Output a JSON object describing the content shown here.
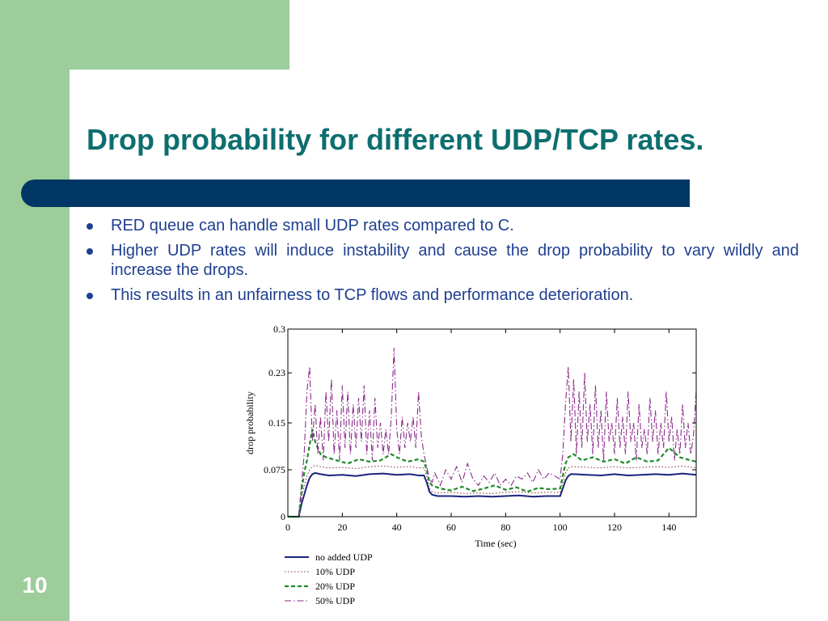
{
  "slide": {
    "title": "Drop probability for different UDP/TCP rates.",
    "bullets": [
      "RED queue can handle small UDP rates compared to C.",
      "Higher UDP rates will induce instability and cause the drop probability to vary wildly and increase the drops.",
      "This results in an unfairness to TCP flows and performance deterioration."
    ],
    "slide_number": "10",
    "colors": {
      "green": "#9ccd9a",
      "title_teal": "#0d6e6e",
      "bar_navy": "#003764",
      "bullet_blue": "#1f3f8f"
    }
  },
  "chart_data": {
    "type": "line",
    "xlabel": "Time (sec)",
    "ylabel": "drop probability",
    "xlim": [
      0,
      150
    ],
    "ylim": [
      0,
      0.3
    ],
    "xticks": [
      "0",
      "20",
      "40",
      "60",
      "80",
      "100",
      "120",
      "140"
    ],
    "yticks": [
      "0",
      "0.075",
      "0.15",
      "0.23",
      "0.3"
    ],
    "grid": false,
    "legend_position": "bottom",
    "series": [
      {
        "name": "no added UDP",
        "color": "#1a237e",
        "style": "solid",
        "x": [
          0,
          4,
          5,
          6,
          7,
          8,
          9,
          10,
          12,
          15,
          20,
          25,
          30,
          35,
          40,
          45,
          48,
          50,
          51,
          52,
          53,
          55,
          60,
          65,
          70,
          75,
          80,
          85,
          90,
          95,
          100,
          101,
          102,
          103,
          104,
          105,
          110,
          115,
          120,
          125,
          130,
          135,
          140,
          145,
          150
        ],
        "y": [
          0,
          0,
          0.02,
          0.035,
          0.05,
          0.062,
          0.068,
          0.07,
          0.068,
          0.066,
          0.067,
          0.065,
          0.068,
          0.069,
          0.067,
          0.068,
          0.066,
          0.066,
          0.055,
          0.04,
          0.035,
          0.033,
          0.033,
          0.032,
          0.033,
          0.032,
          0.033,
          0.034,
          0.032,
          0.033,
          0.033,
          0.045,
          0.058,
          0.065,
          0.068,
          0.068,
          0.067,
          0.066,
          0.068,
          0.066,
          0.067,
          0.068,
          0.067,
          0.069,
          0.067
        ]
      },
      {
        "name": "10% UDP",
        "color": "#8b3a3a",
        "style": "dotted",
        "x": [
          0,
          4,
          5,
          6,
          7,
          8,
          9,
          10,
          12,
          15,
          20,
          25,
          30,
          35,
          40,
          45,
          48,
          50,
          51,
          52,
          53,
          55,
          60,
          65,
          70,
          75,
          80,
          85,
          90,
          95,
          100,
          101,
          102,
          103,
          104,
          105,
          110,
          115,
          120,
          125,
          130,
          135,
          140,
          145,
          150
        ],
        "y": [
          0,
          0,
          0.03,
          0.05,
          0.065,
          0.075,
          0.08,
          0.082,
          0.08,
          0.078,
          0.079,
          0.077,
          0.08,
          0.081,
          0.079,
          0.08,
          0.078,
          0.078,
          0.065,
          0.045,
          0.04,
          0.038,
          0.039,
          0.037,
          0.038,
          0.037,
          0.039,
          0.04,
          0.038,
          0.039,
          0.039,
          0.055,
          0.07,
          0.078,
          0.08,
          0.08,
          0.079,
          0.078,
          0.08,
          0.078,
          0.079,
          0.08,
          0.079,
          0.081,
          0.078
        ]
      },
      {
        "name": "20% UDP",
        "color": "#1e8c2a",
        "style": "dashed",
        "x": [
          0,
          4,
          5,
          6,
          7,
          8,
          9,
          10,
          12,
          14,
          18,
          22,
          26,
          30,
          34,
          38,
          40,
          44,
          48,
          50,
          51,
          52,
          53,
          56,
          60,
          64,
          68,
          72,
          76,
          80,
          84,
          88,
          92,
          96,
          100,
          101,
          102,
          103,
          105,
          108,
          112,
          116,
          120,
          124,
          128,
          132,
          136,
          140,
          144,
          148,
          150
        ],
        "y": [
          0,
          0,
          0.04,
          0.07,
          0.09,
          0.115,
          0.14,
          0.12,
          0.1,
          0.095,
          0.09,
          0.085,
          0.092,
          0.088,
          0.09,
          0.1,
          0.095,
          0.088,
          0.092,
          0.088,
          0.075,
          0.055,
          0.05,
          0.045,
          0.042,
          0.048,
          0.041,
          0.045,
          0.05,
          0.043,
          0.047,
          0.04,
          0.046,
          0.044,
          0.045,
          0.065,
          0.085,
          0.095,
          0.1,
          0.09,
          0.095,
          0.088,
          0.092,
          0.085,
          0.095,
          0.088,
          0.09,
          0.11,
          0.095,
          0.09,
          0.088
        ]
      },
      {
        "name": "50% UDP",
        "color": "#8b2a8b",
        "style": "dashdot",
        "x": [
          0,
          4,
          5,
          6,
          7,
          8,
          9,
          10,
          11,
          12,
          13,
          14,
          15,
          16,
          17,
          18,
          19,
          20,
          21,
          22,
          23,
          24,
          25,
          26,
          27,
          28,
          29,
          30,
          31,
          32,
          33,
          34,
          35,
          36,
          37,
          38,
          39,
          40,
          41,
          42,
          43,
          44,
          45,
          46,
          47,
          48,
          49,
          50,
          51,
          52,
          53,
          54,
          56,
          58,
          60,
          62,
          64,
          66,
          68,
          70,
          72,
          74,
          76,
          78,
          80,
          82,
          84,
          86,
          88,
          90,
          92,
          94,
          96,
          98,
          100,
          101,
          102,
          103,
          104,
          105,
          106,
          107,
          108,
          109,
          110,
          111,
          112,
          113,
          114,
          115,
          116,
          117,
          118,
          119,
          120,
          121,
          122,
          123,
          124,
          125,
          126,
          127,
          128,
          129,
          130,
          131,
          132,
          133,
          134,
          135,
          136,
          137,
          138,
          139,
          140,
          141,
          142,
          143,
          144,
          145,
          146,
          147,
          148,
          149,
          150
        ],
        "y": [
          0,
          0,
          0.05,
          0.1,
          0.2,
          0.24,
          0.12,
          0.18,
          0.1,
          0.16,
          0.09,
          0.2,
          0.12,
          0.22,
          0.1,
          0.17,
          0.09,
          0.21,
          0.11,
          0.2,
          0.1,
          0.18,
          0.11,
          0.19,
          0.12,
          0.21,
          0.1,
          0.17,
          0.09,
          0.19,
          0.11,
          0.15,
          0.1,
          0.14,
          0.1,
          0.16,
          0.27,
          0.14,
          0.1,
          0.16,
          0.11,
          0.15,
          0.12,
          0.16,
          0.11,
          0.2,
          0.13,
          0.1,
          0.08,
          0.06,
          0.055,
          0.07,
          0.05,
          0.075,
          0.06,
          0.08,
          0.055,
          0.085,
          0.06,
          0.05,
          0.065,
          0.055,
          0.07,
          0.05,
          0.06,
          0.05,
          0.065,
          0.06,
          0.07,
          0.055,
          0.075,
          0.06,
          0.07,
          0.065,
          0.06,
          0.1,
          0.18,
          0.24,
          0.12,
          0.22,
          0.1,
          0.2,
          0.11,
          0.23,
          0.12,
          0.18,
          0.1,
          0.21,
          0.11,
          0.17,
          0.09,
          0.2,
          0.12,
          0.15,
          0.1,
          0.19,
          0.11,
          0.16,
          0.1,
          0.2,
          0.12,
          0.15,
          0.09,
          0.18,
          0.11,
          0.14,
          0.1,
          0.19,
          0.12,
          0.17,
          0.1,
          0.15,
          0.11,
          0.2,
          0.12,
          0.16,
          0.09,
          0.14,
          0.1,
          0.18,
          0.11,
          0.15,
          0.1,
          0.13,
          0.2
        ]
      }
    ]
  }
}
